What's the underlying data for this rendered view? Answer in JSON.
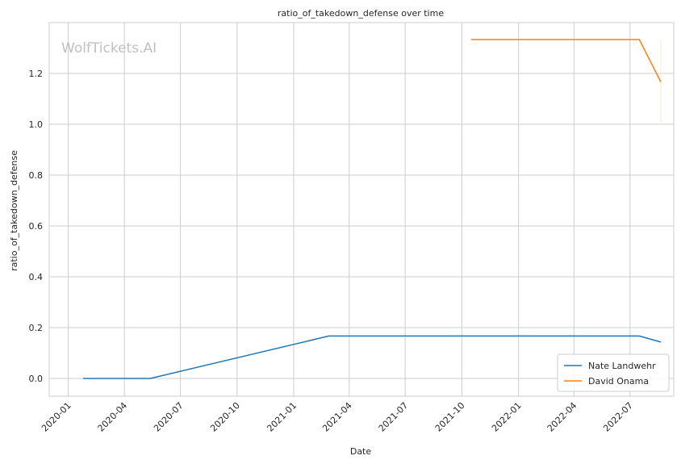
{
  "chart_data": {
    "type": "line",
    "title": "ratio_of_takedown_defense over time",
    "xlabel": "Date",
    "ylabel": "ratio_of_takedown_defense",
    "watermark": "WolfTickets.AI",
    "xlim": [
      "2019-12-01",
      "2022-09-10"
    ],
    "ylim": [
      -0.07,
      1.4
    ],
    "x_ticks": [
      "2020-01-01",
      "2020-04-01",
      "2020-07-01",
      "2020-10-01",
      "2021-01-01",
      "2021-04-01",
      "2021-07-01",
      "2021-10-01",
      "2022-01-01",
      "2022-04-01",
      "2022-07-01"
    ],
    "x_tick_labels": [
      "2020-01",
      "2020-04",
      "2020-07",
      "2020-10",
      "2021-01",
      "2021-04",
      "2021-07",
      "2021-10",
      "2022-01",
      "2022-04",
      "2022-07"
    ],
    "y_ticks": [
      0.0,
      0.2,
      0.4,
      0.6,
      0.8,
      1.0,
      1.2
    ],
    "y_tick_labels": [
      "0.0",
      "0.2",
      "0.4",
      "0.6",
      "0.8",
      "1.0",
      "1.2"
    ],
    "grid": true,
    "legend_position": "lower-right",
    "series": [
      {
        "name": "Nate Landwehr",
        "color": "#1f77b4",
        "points": [
          {
            "x": "2020-01-25",
            "y": 0.0
          },
          {
            "x": "2020-05-13",
            "y": 0.0
          },
          {
            "x": "2021-02-27",
            "y": 0.1667
          },
          {
            "x": "2022-07-16",
            "y": 0.1667
          },
          {
            "x": "2022-08-20",
            "y": 0.1429
          }
        ]
      },
      {
        "name": "David Onama",
        "color": "#ff7f0e",
        "points": [
          {
            "x": "2021-10-16",
            "y": 1.3333
          },
          {
            "x": "2022-07-16",
            "y": 1.3333
          },
          {
            "x": "2022-08-20",
            "y": 1.1667
          }
        ]
      }
    ],
    "annotations": [
      {
        "type": "vertical-band",
        "x": "2022-08-20",
        "y_range": [
          1.0,
          1.3333
        ],
        "color": "#ffe8d0"
      }
    ]
  }
}
